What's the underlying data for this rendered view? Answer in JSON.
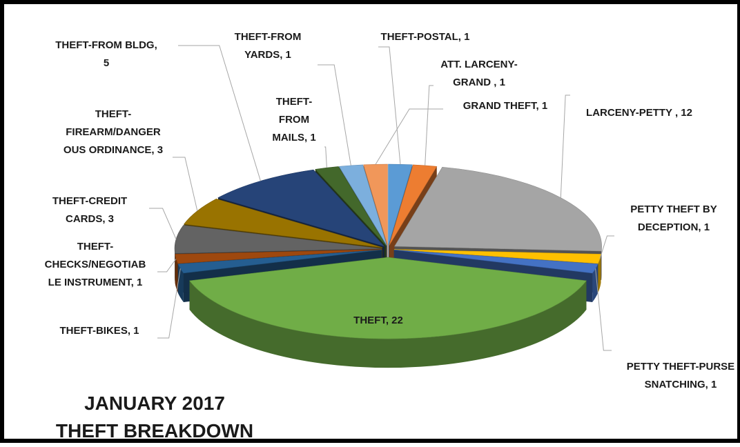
{
  "chart_data": {
    "type": "pie",
    "style": "3d-exploded",
    "title_lines": [
      "JANUARY 2017",
      "THEFT BREAKDOWN"
    ],
    "slices": [
      {
        "category": "THEFT-POSTAL",
        "value": 1,
        "label_lines": [
          "THEFT-POSTAL, 1"
        ],
        "color": "#5b9bd5"
      },
      {
        "category": "ATT. LARCENY-GRAND",
        "value": 1,
        "label_lines": [
          "ATT. LARCENY-",
          "GRAND , 1"
        ],
        "color": "#ed7d31"
      },
      {
        "category": "LARCENY-PETTY",
        "value": 12,
        "label_lines": [
          "LARCENY-PETTY , 12"
        ],
        "color": "#a5a5a5"
      },
      {
        "category": "PETTY THEFT BY DECEPTION",
        "value": 1,
        "label_lines": [
          "PETTY THEFT BY",
          "DECEPTION, 1"
        ],
        "color": "#ffc000"
      },
      {
        "category": "PETTY THEFT-PURSE SNATCHING",
        "value": 1,
        "label_lines": [
          "PETTY THEFT-PURSE",
          "SNATCHING, 1"
        ],
        "color": "#4472c4"
      },
      {
        "category": "THEFT",
        "value": 22,
        "label_lines": [
          "THEFT, 22"
        ],
        "color": "#70ad47"
      },
      {
        "category": "THEFT-BIKES",
        "value": 1,
        "label_lines": [
          "THEFT-BIKES, 1"
        ],
        "color": "#255e91"
      },
      {
        "category": "THEFT-CHECKS/NEGOTIABLE INSTRUMENT",
        "value": 1,
        "label_lines": [
          "THEFT-",
          "CHECKS/NEGOTIAB",
          "LE INSTRUMENT, 1"
        ],
        "color": "#9e480e"
      },
      {
        "category": "THEFT-CREDIT CARDS",
        "value": 3,
        "label_lines": [
          "THEFT-CREDIT",
          "CARDS, 3"
        ],
        "color": "#636363"
      },
      {
        "category": "THEFT-FIREARM/DANGEROUS ORDINANCE",
        "value": 3,
        "label_lines": [
          "THEFT-",
          "FIREARM/DANGER",
          "OUS ORDINANCE, 3"
        ],
        "color": "#997300"
      },
      {
        "category": "THEFT-FROM BLDG",
        "value": 5,
        "label_lines": [
          "THEFT-FROM BLDG,",
          "5"
        ],
        "color": "#264478"
      },
      {
        "category": "THEFT-FROM MAILS",
        "value": 1,
        "label_lines": [
          "THEFT-",
          "FROM",
          "MAILS, 1"
        ],
        "color": "#43682b"
      },
      {
        "category": "THEFT-FROM YARDS",
        "value": 1,
        "label_lines": [
          "THEFT-FROM",
          "YARDS, 1"
        ],
        "color": "#7cafdd"
      },
      {
        "category": "GRAND THEFT",
        "value": 1,
        "label_lines": [
          "GRAND THEFT, 1"
        ],
        "color": "#f1975a"
      }
    ],
    "legend": "none",
    "data_labels": "category and value"
  }
}
